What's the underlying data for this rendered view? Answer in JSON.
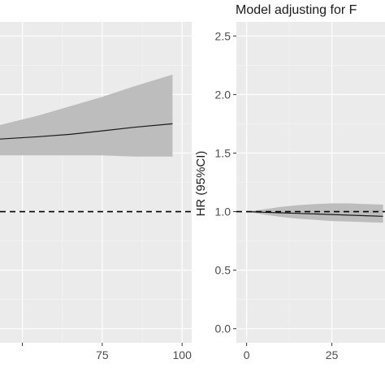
{
  "chart_data": [
    {
      "type": "line",
      "title": "",
      "xlabel": "",
      "ylabel": "",
      "xlim": [
        43,
        103
      ],
      "ylim": [
        -0.12,
        2.62
      ],
      "x_ticks": [
        50,
        75,
        100
      ],
      "x_tick_labels": [
        "",
        "75",
        "100"
      ],
      "y_ticks": [
        0.0,
        0.5,
        1.0,
        1.5,
        2.0,
        2.5
      ],
      "grid": true,
      "reference_line": {
        "y": 1.0,
        "style": "dashed"
      },
      "series": [
        {
          "x": [
            43,
            55,
            65,
            75,
            85,
            97
          ],
          "y": [
            1.62,
            1.64,
            1.66,
            1.69,
            1.72,
            1.75
          ],
          "lower": [
            1.48,
            1.48,
            1.48,
            1.48,
            1.47,
            1.47
          ],
          "upper": [
            1.74,
            1.82,
            1.9,
            1.98,
            2.07,
            2.17
          ]
        }
      ]
    },
    {
      "type": "line",
      "title": "Model adjusting for F",
      "xlabel": "",
      "ylabel": "HR (95%CI)",
      "xlim": [
        -3,
        42
      ],
      "ylim": [
        -0.12,
        2.62
      ],
      "x_ticks": [
        0,
        25
      ],
      "x_tick_labels": [
        "0",
        "25"
      ],
      "y_ticks": [
        0.0,
        0.5,
        1.0,
        1.5,
        2.0,
        2.5
      ],
      "y_tick_labels": [
        "0.0",
        "0.5",
        "1.0",
        "1.5",
        "2.0",
        "2.5"
      ],
      "grid": true,
      "reference_line": {
        "y": 1.0,
        "style": "dashed"
      },
      "series": [
        {
          "x": [
            0,
            5,
            10,
            15,
            20,
            25,
            30,
            35,
            40
          ],
          "y": [
            1.0,
            0.995,
            0.99,
            0.985,
            0.98,
            0.975,
            0.97,
            0.965,
            0.96
          ],
          "lower": [
            1.0,
            0.975,
            0.955,
            0.94,
            0.93,
            0.92,
            0.915,
            0.91,
            0.905
          ],
          "upper": [
            1.0,
            1.02,
            1.04,
            1.055,
            1.065,
            1.07,
            1.07,
            1.065,
            1.06
          ]
        }
      ]
    }
  ]
}
